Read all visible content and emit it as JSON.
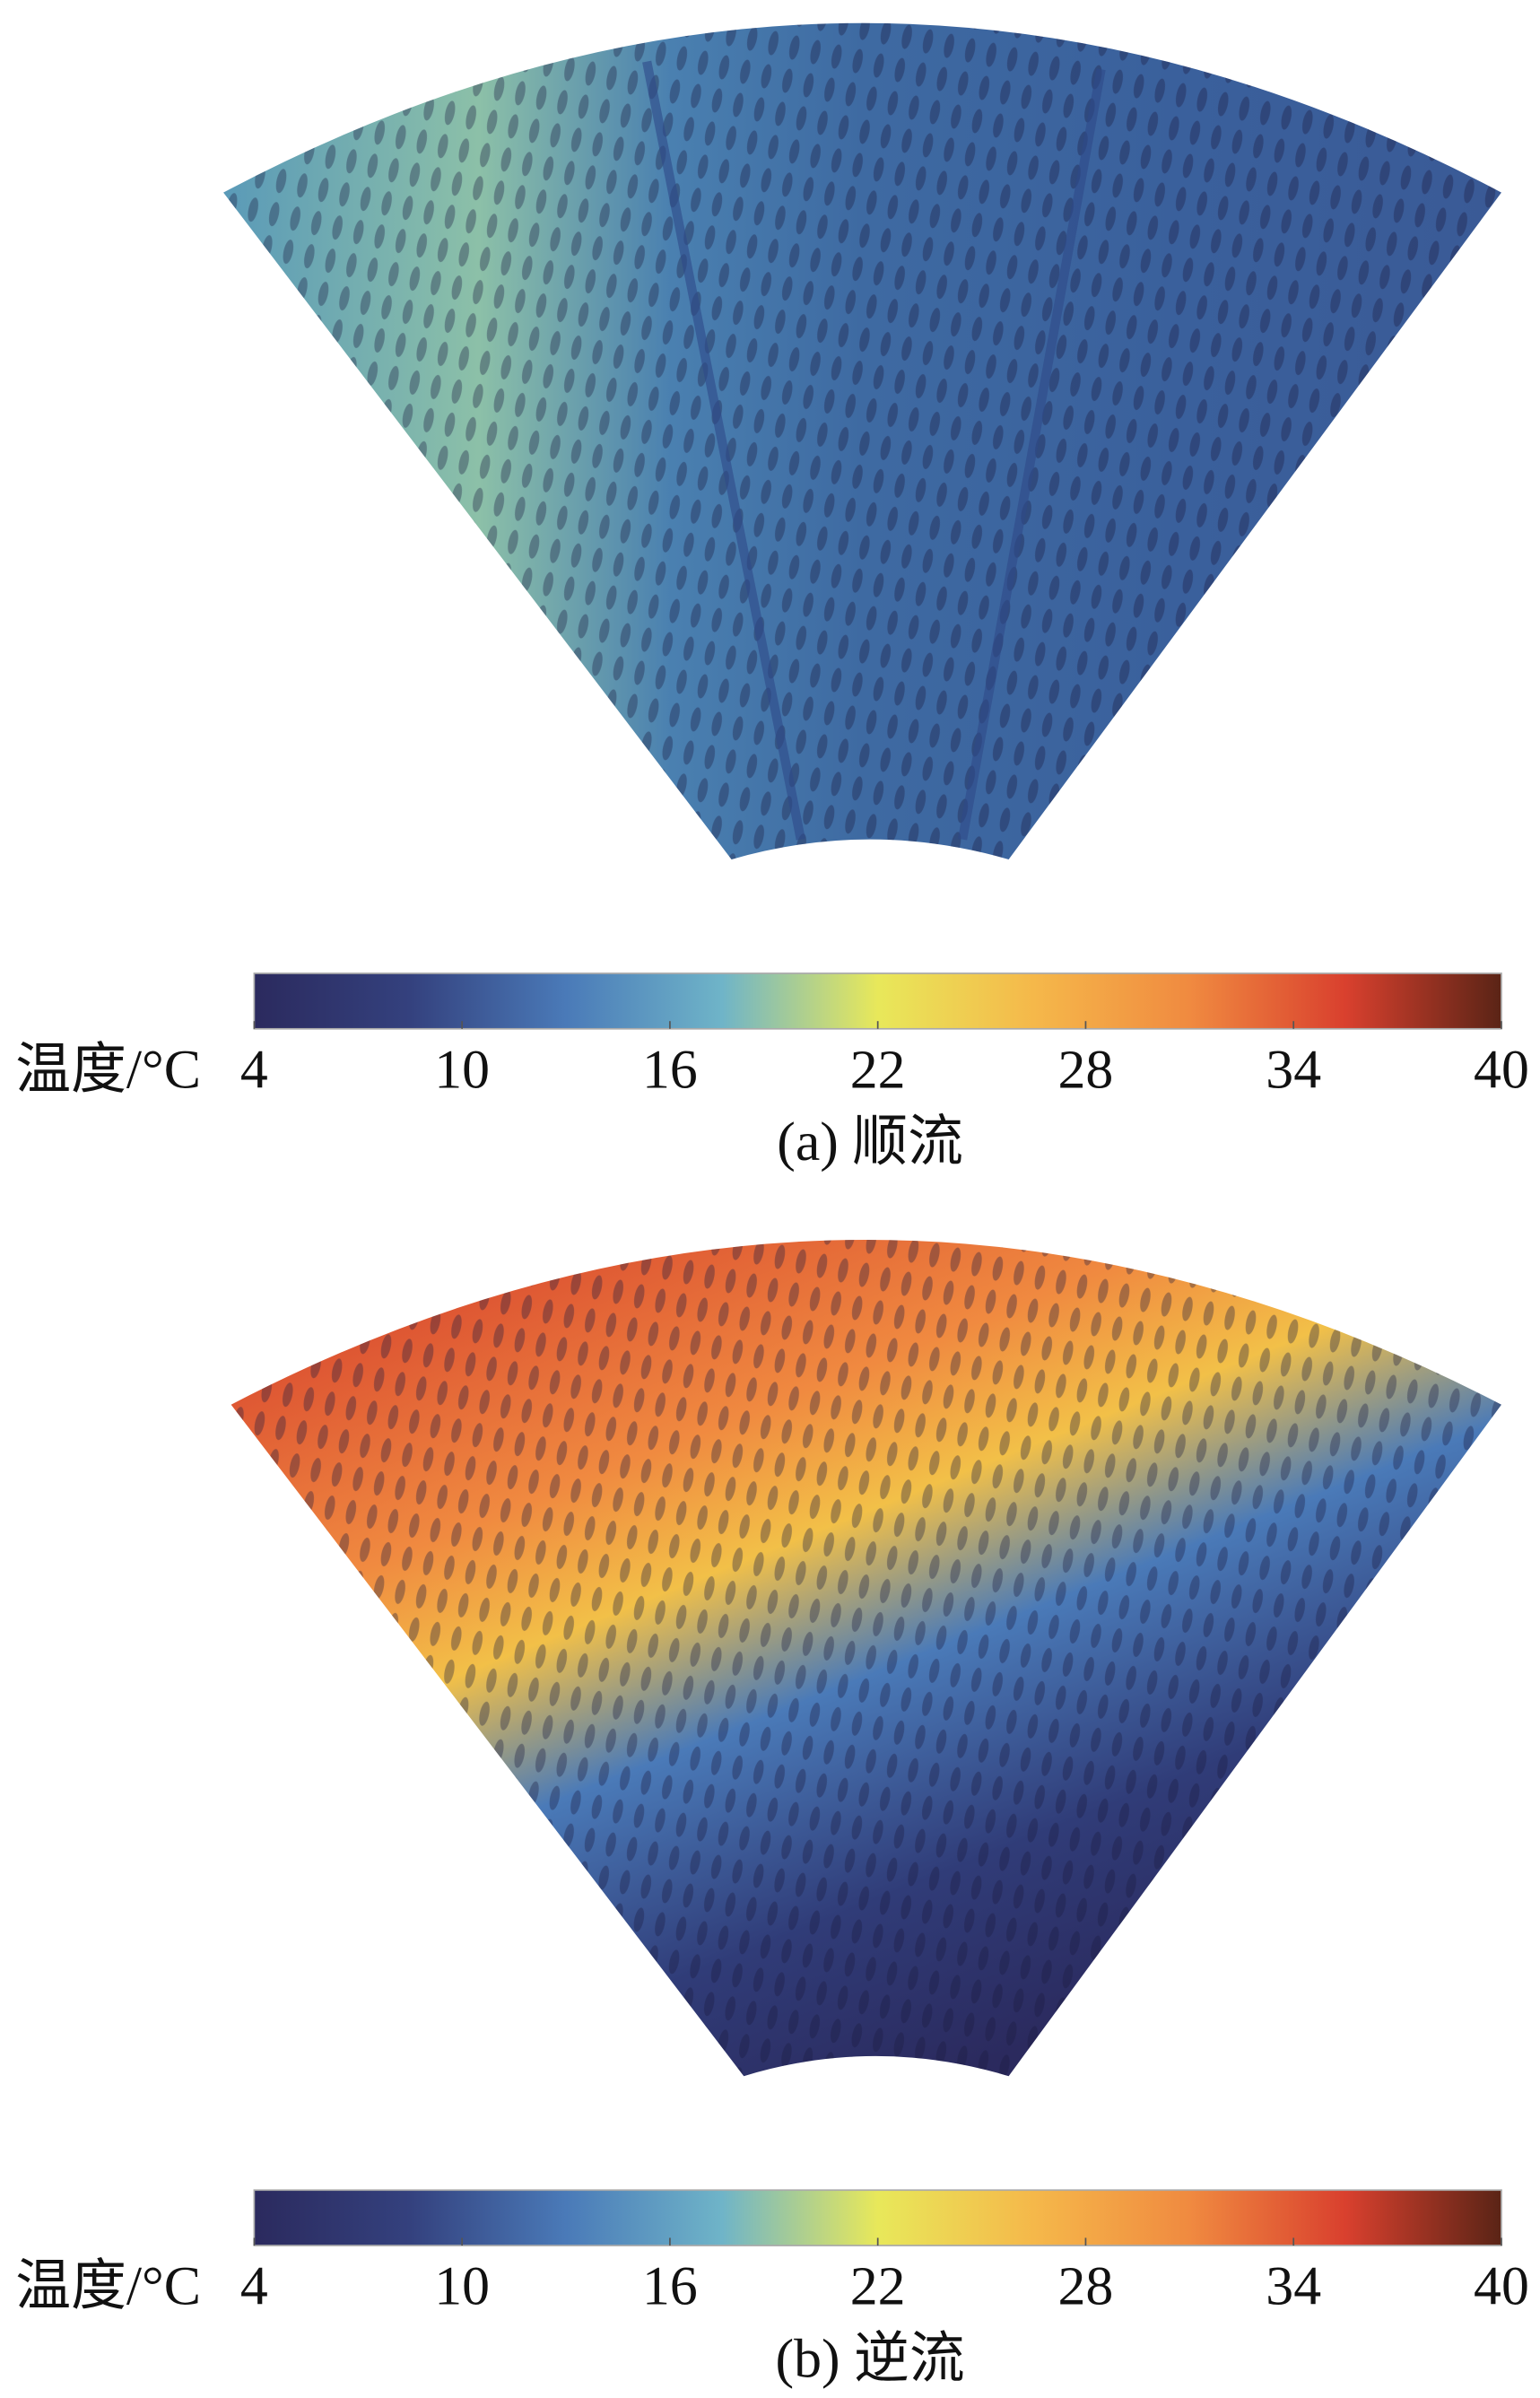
{
  "chart_data": [
    {
      "type": "contour",
      "caption": "(a) 顺流",
      "colorbar_label": "温度/°C",
      "clim": [
        4,
        40
      ],
      "ticks": [
        4,
        10,
        16,
        22,
        28,
        34,
        40
      ],
      "colormap": [
        "#2b2a5e",
        "#34417e",
        "#4a7ab8",
        "#6fb4c8",
        "#e8e85a",
        "#f5b84a",
        "#f08a40",
        "#d9402e",
        "#5a2416"
      ]
    },
    {
      "type": "contour",
      "caption": "(b) 逆流",
      "colorbar_label": "温度/°C",
      "clim": [
        4,
        40
      ],
      "ticks": [
        4,
        10,
        16,
        22,
        28,
        34,
        40
      ],
      "colormap": [
        "#2b2a5e",
        "#34417e",
        "#4a7ab8",
        "#6fb4c8",
        "#e8e85a",
        "#f5b84a",
        "#f08a40",
        "#d9402e",
        "#5a2416"
      ]
    }
  ]
}
